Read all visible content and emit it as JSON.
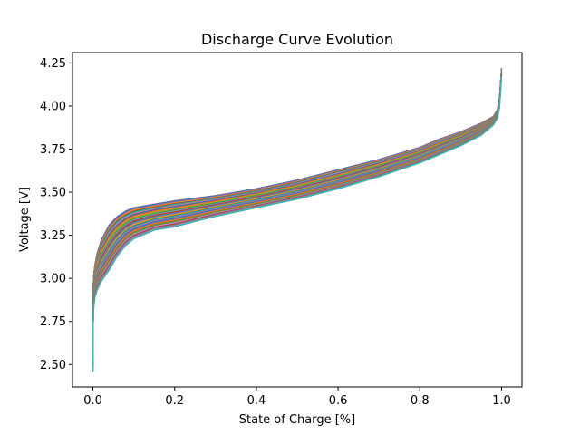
{
  "chart_data": {
    "type": "line",
    "title": "Discharge Curve Evolution",
    "xlabel": "State of Charge [%]",
    "ylabel": "Voltage [V]",
    "xlim": [
      -0.05,
      1.05
    ],
    "ylim": [
      2.37,
      4.31
    ],
    "x_ticks": [
      0.0,
      0.2,
      0.4,
      0.6,
      0.8,
      1.0
    ],
    "x_tick_labels": [
      "0.0",
      "0.2",
      "0.4",
      "0.6",
      "0.8",
      "1.0"
    ],
    "y_ticks": [
      2.5,
      2.75,
      3.0,
      3.25,
      3.5,
      3.75,
      4.0,
      4.25
    ],
    "y_tick_labels": [
      "2.50",
      "2.75",
      "3.00",
      "3.25",
      "3.50",
      "3.75",
      "4.00",
      "4.25"
    ],
    "grid": false,
    "legend": "none",
    "series_colors": [
      "#1f77b4",
      "#ff7f0e",
      "#2ca02c",
      "#d62728",
      "#9467bd",
      "#8c564b",
      "#e377c2",
      "#7f7f7f",
      "#bcbd22",
      "#17becf"
    ],
    "series_count": 150,
    "x": [
      0.0,
      0.0005,
      0.002,
      0.005,
      0.01,
      0.02,
      0.04,
      0.06,
      0.08,
      0.1,
      0.15,
      0.2,
      0.3,
      0.4,
      0.5,
      0.6,
      0.7,
      0.8,
      0.85,
      0.9,
      0.95,
      0.98,
      0.99,
      0.995,
      1.0
    ],
    "envelope_upper": [
      2.85,
      2.95,
      3.02,
      3.08,
      3.14,
      3.22,
      3.31,
      3.36,
      3.39,
      3.41,
      3.43,
      3.45,
      3.48,
      3.52,
      3.57,
      3.63,
      3.69,
      3.76,
      3.81,
      3.85,
      3.9,
      3.94,
      3.98,
      4.05,
      4.22
    ],
    "envelope_lower": [
      2.46,
      2.72,
      2.83,
      2.89,
      2.93,
      2.98,
      3.05,
      3.13,
      3.19,
      3.23,
      3.28,
      3.3,
      3.36,
      3.41,
      3.46,
      3.52,
      3.59,
      3.67,
      3.72,
      3.77,
      3.83,
      3.89,
      3.93,
      3.99,
      4.17
    ]
  }
}
